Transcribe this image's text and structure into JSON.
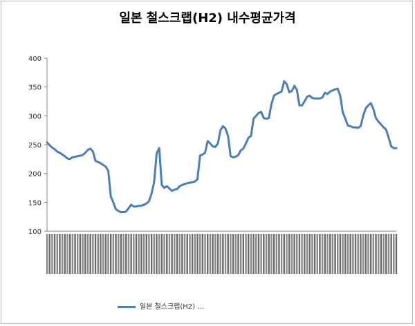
{
  "chart_data": {
    "type": "line",
    "title": "일본 철스크랩(H2) 내수평균가격",
    "ylim": [
      100,
      400
    ],
    "yticks": [
      100,
      150,
      200,
      250,
      300,
      350,
      400
    ],
    "legend": "bottom",
    "grid": false,
    "series": [
      {
        "name": "일본 철스크랩(H2) ...",
        "color": "#4a7ebb",
        "values": [
          254,
          249,
          245,
          242,
          238,
          236,
          233,
          230,
          226,
          225,
          228,
          229,
          230,
          231,
          232,
          236,
          241,
          243,
          238,
          222,
          220,
          218,
          215,
          212,
          205,
          160,
          150,
          138,
          135,
          133,
          133,
          134,
          140,
          146,
          143,
          143,
          144,
          144,
          146,
          148,
          152,
          165,
          185,
          235,
          244,
          180,
          175,
          178,
          174,
          170,
          172,
          173,
          178,
          180,
          182,
          183,
          184,
          185,
          186,
          190,
          231,
          233,
          236,
          256,
          252,
          247,
          246,
          252,
          275,
          282,
          278,
          265,
          230,
          228,
          229,
          232,
          240,
          243,
          252,
          262,
          265,
          295,
          300,
          305,
          307,
          296,
          295,
          296,
          320,
          335,
          338,
          340,
          342,
          360,
          355,
          341,
          343,
          352,
          345,
          318,
          318,
          325,
          333,
          335,
          331,
          330,
          330,
          330,
          332,
          340,
          338,
          342,
          344,
          346,
          347,
          335,
          306,
          295,
          283,
          282,
          280,
          280,
          279,
          282,
          300,
          313,
          318,
          322,
          312,
          296,
          290,
          285,
          280,
          276,
          262,
          247,
          244,
          244
        ],
        "x_tick_labels_visible": false
      }
    ]
  }
}
